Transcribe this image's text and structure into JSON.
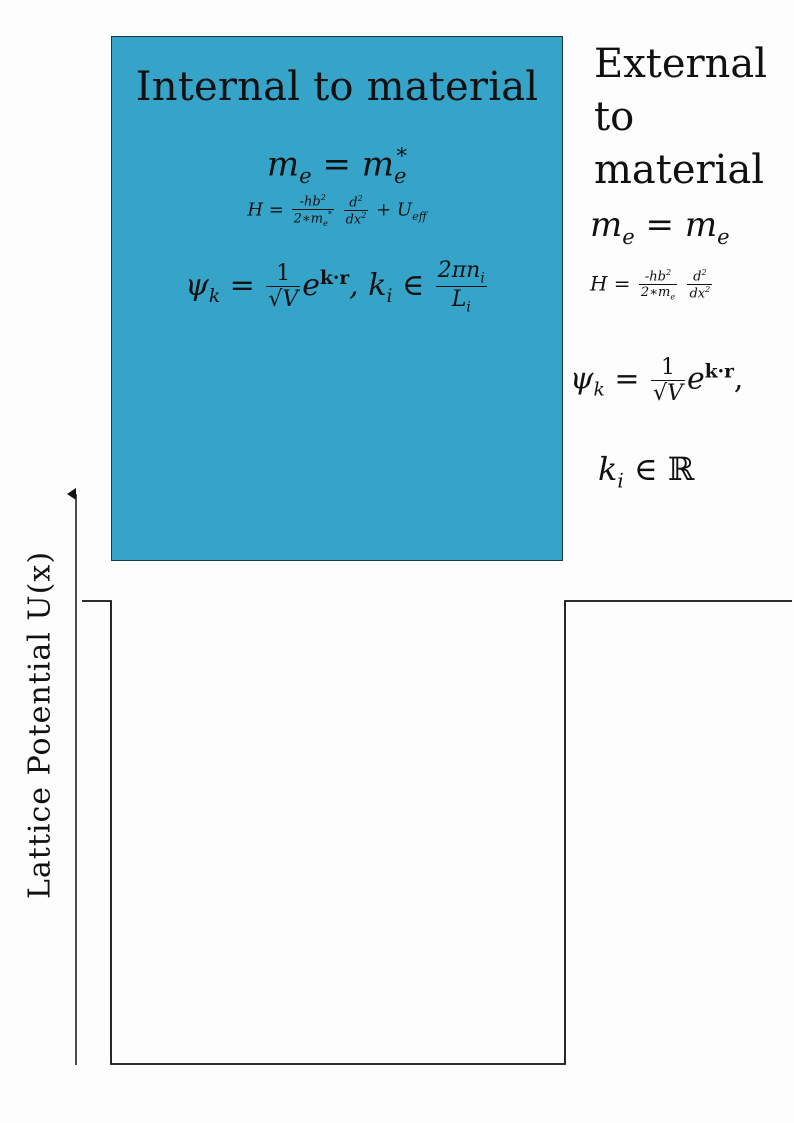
{
  "colors": {
    "material_box": "#36a3c8",
    "lines": "#111111"
  },
  "internal": {
    "title": "Internal to material",
    "mass_eq": {
      "lhs": "m",
      "lhs_sub": "e",
      "eq": "=",
      "rhs": "m",
      "rhs_sub": "e",
      "rhs_sup": "*"
    },
    "hamiltonian": {
      "lhs": "H =",
      "num1": "-hb",
      "num1_sup": "2",
      "den1": "2∗m",
      "den1_sub": "e",
      "den1_sup": "*",
      "num2": "d",
      "num2_sup": "2",
      "den2": "dx",
      "den2_sup": "2",
      "plus": "+ U",
      "plus_sub": "eff"
    },
    "wavefunction": {
      "lhs": "ψ",
      "lhs_sub": "k",
      "eq": "=",
      "num": "1",
      "den": "√V",
      "exp_base": "e",
      "exp": "k·r",
      "comma": ", k",
      "k_sub": "i",
      "in": "∈",
      "num2": "2πn",
      "num2_sub": "i",
      "den2": "L",
      "den2_sub": "i"
    }
  },
  "external": {
    "title_lines": [
      "External",
      "to",
      "material"
    ],
    "mass_eq": {
      "lhs": "m",
      "lhs_sub": "e",
      "eq": "=",
      "rhs": "m",
      "rhs_sub": "e"
    },
    "hamiltonian": {
      "lhs": "H =",
      "num1": "-hb",
      "num1_sup": "2",
      "den1": "2∗m",
      "den1_sub": "e",
      "num2": "d",
      "num2_sup": "2",
      "den2": "dx",
      "den2_sup": "2"
    },
    "wavefunction": {
      "lhs": "ψ",
      "lhs_sub": "k",
      "eq": "=",
      "num": "1",
      "den": "√V",
      "exp_base": "e",
      "exp": "k·r",
      "comma": ","
    },
    "k_domain": {
      "k": "k",
      "k_sub": "i",
      "in": "∈",
      "set": "ℝ"
    }
  },
  "axis": {
    "ylabel": "Lattice Potential U(x)"
  }
}
